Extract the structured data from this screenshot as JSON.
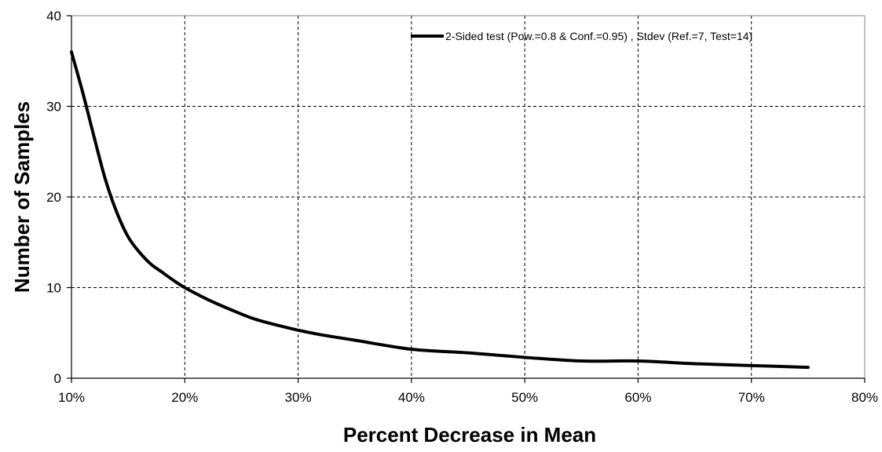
{
  "chart_data": {
    "type": "line",
    "title": "",
    "xlabel": "Percent Decrease in Mean",
    "ylabel": "Number of Samples",
    "xlim": [
      10,
      80
    ],
    "ylim": [
      0,
      40
    ],
    "x_ticks": [
      10,
      20,
      30,
      40,
      50,
      60,
      70,
      80
    ],
    "x_tick_labels": [
      "10%",
      "20%",
      "30%",
      "40%",
      "50%",
      "60%",
      "70%",
      "80%"
    ],
    "y_ticks": [
      0,
      10,
      20,
      30,
      40
    ],
    "y_tick_labels": [
      "0",
      "10",
      "20",
      "30",
      "40"
    ],
    "grid": true,
    "legend_position": "top-right",
    "series": [
      {
        "name": "2-Sided test (Pow.=0.8 & Conf.=0.95) ,  Stdev (Ref.=7, Test=14)",
        "color": "#000000",
        "x": [
          10,
          11,
          12,
          13,
          14,
          15,
          16,
          17,
          18,
          19,
          20,
          22,
          24,
          26,
          28,
          30,
          32,
          35,
          40,
          45,
          50,
          55,
          60,
          65,
          70,
          75
        ],
        "y": [
          36,
          31.5,
          26.6,
          21.9,
          18.3,
          15.6,
          13.9,
          12.6,
          11.7,
          10.8,
          10,
          8.7,
          7.6,
          6.6,
          5.9,
          5.3,
          4.8,
          4.2,
          3.2,
          2.8,
          2.3,
          1.9,
          1.9,
          1.6,
          1.4,
          1.2
        ]
      }
    ]
  }
}
